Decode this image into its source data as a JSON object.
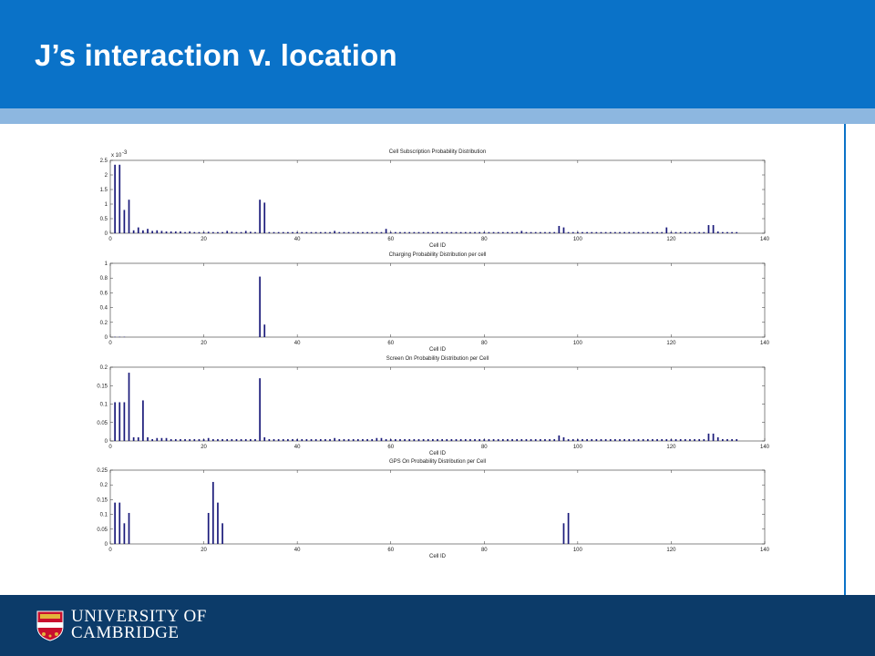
{
  "slide": {
    "title": "J’s interaction v. location",
    "logo_line1": "UNIVERSITY OF",
    "logo_line2": "CAMBRIDGE"
  },
  "colors": {
    "header_blue": "#0a72c8",
    "stripe_light_blue": "#8db7e0",
    "footer_navy": "#0c3b69",
    "bar_navy": "#1a1a7a"
  },
  "icons": [
    "cambridge-crest-icon"
  ],
  "chart_data": [
    {
      "type": "bar",
      "title": "Cell Subscription Probability Distribution",
      "xlabel": "Cell ID",
      "ylabel": "",
      "exponent_label": "x 10",
      "exponent_power": "-3",
      "xlim": [
        0,
        140
      ],
      "ylim": [
        0,
        2.5
      ],
      "xticks": [
        "0",
        "20",
        "40",
        "60",
        "80",
        "100",
        "120",
        "140"
      ],
      "yticks": [
        "0",
        "0.5",
        "1",
        "1.5",
        "2",
        "2.5"
      ],
      "x": [
        1,
        2,
        3,
        4,
        5,
        6,
        7,
        8,
        9,
        10,
        11,
        12,
        13,
        14,
        15,
        16,
        17,
        18,
        19,
        20,
        21,
        22,
        23,
        24,
        25,
        26,
        27,
        28,
        29,
        30,
        31,
        32,
        33,
        34,
        35,
        36,
        37,
        38,
        39,
        40,
        41,
        42,
        43,
        44,
        45,
        46,
        47,
        48,
        49,
        50,
        51,
        52,
        53,
        54,
        55,
        56,
        57,
        58,
        59,
        60,
        61,
        62,
        63,
        64,
        65,
        66,
        67,
        68,
        69,
        70,
        71,
        72,
        73,
        74,
        75,
        76,
        77,
        78,
        79,
        80,
        81,
        82,
        83,
        84,
        85,
        86,
        87,
        88,
        89,
        90,
        91,
        92,
        93,
        94,
        95,
        96,
        97,
        98,
        99,
        100,
        101,
        102,
        103,
        104,
        105,
        106,
        107,
        108,
        109,
        110,
        111,
        112,
        113,
        114,
        115,
        116,
        117,
        118,
        119,
        120,
        121,
        122,
        123,
        124,
        125,
        126,
        127,
        128,
        129,
        130,
        131,
        132,
        133,
        134
      ],
      "values": [
        2.35,
        2.35,
        0.8,
        1.15,
        0.1,
        0.2,
        0.1,
        0.15,
        0.08,
        0.1,
        0.08,
        0.06,
        0.06,
        0.06,
        0.06,
        0.04,
        0.06,
        0.04,
        0.04,
        0.04,
        0.05,
        0.04,
        0.04,
        0.04,
        0.08,
        0.05,
        0.04,
        0.04,
        0.08,
        0.05,
        0.04,
        1.15,
        1.05,
        0.04,
        0.04,
        0.04,
        0.04,
        0.04,
        0.04,
        0.04,
        0.04,
        0.04,
        0.04,
        0.04,
        0.04,
        0.04,
        0.04,
        0.08,
        0.04,
        0.04,
        0.04,
        0.04,
        0.04,
        0.04,
        0.04,
        0.04,
        0.04,
        0.04,
        0.15,
        0.04,
        0.04,
        0.04,
        0.04,
        0.04,
        0.04,
        0.04,
        0.04,
        0.04,
        0.04,
        0.04,
        0.04,
        0.04,
        0.04,
        0.04,
        0.04,
        0.04,
        0.04,
        0.04,
        0.04,
        0.04,
        0.04,
        0.04,
        0.04,
        0.04,
        0.04,
        0.04,
        0.04,
        0.08,
        0.04,
        0.04,
        0.04,
        0.04,
        0.04,
        0.04,
        0.04,
        0.25,
        0.2,
        0.04,
        0.04,
        0.04,
        0.04,
        0.04,
        0.04,
        0.04,
        0.04,
        0.04,
        0.04,
        0.04,
        0.04,
        0.04,
        0.04,
        0.04,
        0.04,
        0.04,
        0.04,
        0.04,
        0.04,
        0.04,
        0.2,
        0.04,
        0.04,
        0.04,
        0.04,
        0.04,
        0.04,
        0.04,
        0.04,
        0.28,
        0.28,
        0.06,
        0.04,
        0.04,
        0.04,
        0.04
      ]
    },
    {
      "type": "bar",
      "title": "Charging Probability Distribution per cell",
      "xlabel": "Cell ID",
      "ylabel": "",
      "xlim": [
        0,
        140
      ],
      "ylim": [
        0,
        1
      ],
      "xticks": [
        "0",
        "20",
        "40",
        "60",
        "80",
        "100",
        "120",
        "140"
      ],
      "yticks": [
        "0",
        "0.2",
        "0.4",
        "0.6",
        "0.8",
        "1"
      ],
      "x": [
        1,
        2,
        3,
        32,
        33
      ],
      "values": [
        0.004,
        0.004,
        0.004,
        0.82,
        0.17
      ]
    },
    {
      "type": "bar",
      "title": "Screen On Probability Distribution per Cell",
      "xlabel": "Cell ID",
      "ylabel": "",
      "xlim": [
        0,
        140
      ],
      "ylim": [
        0,
        0.2
      ],
      "xticks": [
        "0",
        "20",
        "40",
        "60",
        "80",
        "100",
        "120",
        "140"
      ],
      "yticks": [
        "0",
        "0.05",
        "0.1",
        "0.15",
        "0.2"
      ],
      "x": [
        1,
        2,
        3,
        4,
        5,
        6,
        7,
        8,
        9,
        10,
        11,
        12,
        13,
        14,
        15,
        16,
        17,
        18,
        19,
        20,
        21,
        22,
        23,
        24,
        25,
        26,
        27,
        28,
        29,
        30,
        31,
        32,
        33,
        34,
        35,
        36,
        37,
        38,
        39,
        40,
        41,
        42,
        43,
        44,
        45,
        46,
        47,
        48,
        49,
        50,
        51,
        52,
        53,
        54,
        55,
        56,
        57,
        58,
        59,
        60,
        61,
        62,
        63,
        64,
        65,
        66,
        67,
        68,
        69,
        70,
        71,
        72,
        73,
        74,
        75,
        76,
        77,
        78,
        79,
        80,
        81,
        82,
        83,
        84,
        85,
        86,
        87,
        88,
        89,
        90,
        91,
        92,
        93,
        94,
        95,
        96,
        97,
        98,
        99,
        100,
        101,
        102,
        103,
        104,
        105,
        106,
        107,
        108,
        109,
        110,
        111,
        112,
        113,
        114,
        115,
        116,
        117,
        118,
        119,
        120,
        121,
        122,
        123,
        124,
        125,
        126,
        127,
        128,
        129,
        130,
        131,
        132,
        133,
        134
      ],
      "values": [
        0.105,
        0.105,
        0.105,
        0.185,
        0.01,
        0.01,
        0.11,
        0.01,
        0.005,
        0.008,
        0.008,
        0.008,
        0.005,
        0.005,
        0.005,
        0.005,
        0.005,
        0.005,
        0.005,
        0.005,
        0.008,
        0.005,
        0.005,
        0.005,
        0.005,
        0.005,
        0.005,
        0.005,
        0.005,
        0.005,
        0.005,
        0.17,
        0.01,
        0.005,
        0.005,
        0.005,
        0.005,
        0.005,
        0.005,
        0.005,
        0.005,
        0.005,
        0.005,
        0.005,
        0.005,
        0.005,
        0.005,
        0.008,
        0.005,
        0.005,
        0.005,
        0.005,
        0.005,
        0.005,
        0.005,
        0.005,
        0.008,
        0.008,
        0.005,
        0.005,
        0.005,
        0.005,
        0.005,
        0.005,
        0.005,
        0.005,
        0.005,
        0.005,
        0.005,
        0.005,
        0.005,
        0.005,
        0.005,
        0.005,
        0.005,
        0.005,
        0.005,
        0.005,
        0.005,
        0.005,
        0.005,
        0.005,
        0.005,
        0.005,
        0.005,
        0.005,
        0.005,
        0.005,
        0.005,
        0.005,
        0.005,
        0.005,
        0.005,
        0.005,
        0.005,
        0.015,
        0.01,
        0.005,
        0.005,
        0.005,
        0.005,
        0.005,
        0.005,
        0.005,
        0.005,
        0.005,
        0.005,
        0.005,
        0.005,
        0.005,
        0.005,
        0.005,
        0.005,
        0.005,
        0.005,
        0.005,
        0.005,
        0.005,
        0.005,
        0.005,
        0.005,
        0.005,
        0.005,
        0.005,
        0.005,
        0.005,
        0.005,
        0.02,
        0.02,
        0.01,
        0.005,
        0.005,
        0.005,
        0.005
      ]
    },
    {
      "type": "bar",
      "title": "GPS On Probability Distribution per Cell",
      "xlabel": "Cell ID",
      "ylabel": "",
      "xlim": [
        0,
        140
      ],
      "ylim": [
        0,
        0.25
      ],
      "xticks": [
        "0",
        "20",
        "40",
        "60",
        "80",
        "100",
        "120",
        "140"
      ],
      "yticks": [
        "0",
        "0.05",
        "0.1",
        "0.15",
        "0.2",
        "0.25"
      ],
      "x": [
        1,
        2,
        3,
        4,
        21,
        22,
        23,
        24,
        97,
        98
      ],
      "values": [
        0.14,
        0.14,
        0.07,
        0.105,
        0.105,
        0.21,
        0.14,
        0.07,
        0.07,
        0.105
      ]
    }
  ]
}
